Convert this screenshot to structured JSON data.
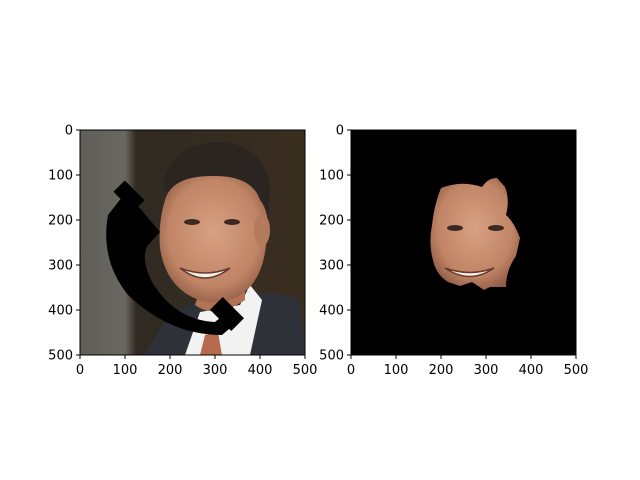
{
  "chart_data": [
    {
      "type": "image",
      "name": "original-with-phone-occlusion",
      "xlim": [
        0,
        500
      ],
      "ylim": [
        500,
        0
      ],
      "xticks": [
        0,
        100,
        200,
        300,
        400,
        500
      ],
      "yticks": [
        0,
        100,
        200,
        300,
        400,
        500
      ],
      "xtick_labels": [
        "0",
        "100",
        "200",
        "300",
        "400",
        "500"
      ],
      "ytick_labels": [
        "0",
        "100",
        "200",
        "300",
        "400",
        "500"
      ],
      "content": "photo of a smiling man in a suit, partially occluded by a black telephone handset silhouette"
    },
    {
      "type": "image",
      "name": "segmented-face-mask",
      "xlim": [
        0,
        500
      ],
      "ylim": [
        500,
        0
      ],
      "xticks": [
        0,
        100,
        200,
        300,
        400,
        500
      ],
      "yticks": [
        0,
        100,
        200,
        300,
        400,
        500
      ],
      "xtick_labels": [
        "0",
        "100",
        "200",
        "300",
        "400",
        "500"
      ],
      "ytick_labels": [
        "0",
        "100",
        "200",
        "300",
        "400",
        "500"
      ],
      "content": "black background with only the segmented face region visible"
    }
  ],
  "colors": {
    "axis": "#000000",
    "mask_background": "#000000",
    "skin": "#c98e6e",
    "hair": "#2b2522"
  }
}
